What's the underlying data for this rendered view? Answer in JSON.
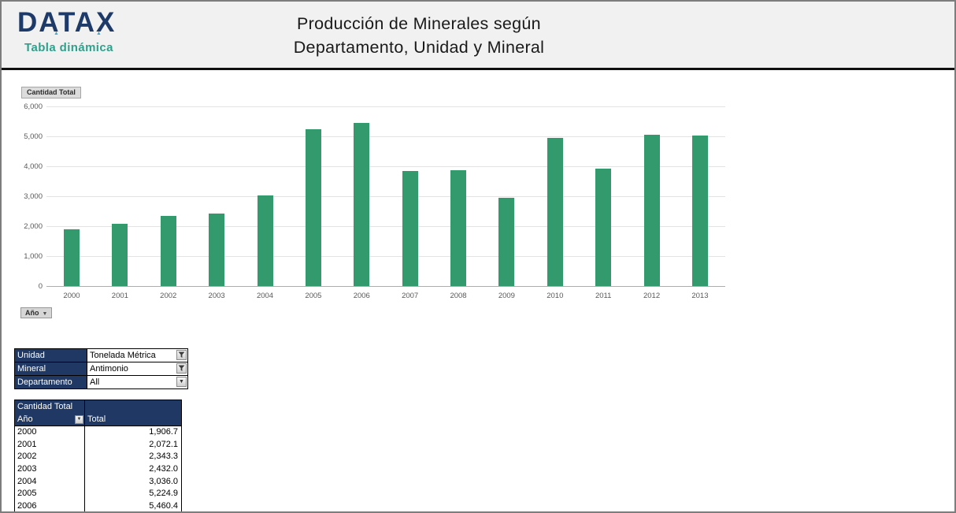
{
  "header": {
    "logo": "DATAX",
    "logo_subtitle": "Tabla dinámica",
    "title_line1": "Producción de Minerales según",
    "title_line2": "Departamento, Unidad y Mineral"
  },
  "chart": {
    "field_button_label": "Cantidad Total",
    "axis_field_button_label": "Año",
    "y_tick_labels": [
      "0",
      "1,000",
      "2,000",
      "3,000",
      "4,000",
      "5,000",
      "6,000"
    ]
  },
  "chart_data": {
    "type": "bar",
    "title": "Cantidad Total",
    "xlabel": "Año",
    "ylabel": "",
    "categories": [
      "2000",
      "2001",
      "2002",
      "2003",
      "2004",
      "2005",
      "2006",
      "2007",
      "2008",
      "2009",
      "2010",
      "2011",
      "2012",
      "2013"
    ],
    "values": [
      1906.7,
      2072.1,
      2343.3,
      2432.0,
      3036.0,
      5224.9,
      5460.4,
      3850,
      3880,
      2960,
      4940,
      3920,
      5060,
      5020
    ],
    "ylim": [
      0,
      6000
    ],
    "ytick_step": 1000,
    "grid": true,
    "legend": "none",
    "bar_color": "#339a6d"
  },
  "filters": {
    "rows": [
      {
        "label": "Unidad",
        "value": "Tonelada Métrica",
        "icon": "filter-funnel-icon"
      },
      {
        "label": "Mineral",
        "value": "Antimonio",
        "icon": "filter-funnel-icon"
      },
      {
        "label": "Departamento",
        "value": "All",
        "icon": "dropdown-arrow-icon"
      }
    ]
  },
  "pivot": {
    "title": "Cantidad Total",
    "row_field": "Año",
    "value_field": "Total",
    "rows": [
      {
        "year": "2000",
        "total": "1,906.7"
      },
      {
        "year": "2001",
        "total": "2,072.1"
      },
      {
        "year": "2002",
        "total": "2,343.3"
      },
      {
        "year": "2003",
        "total": "2,432.0"
      },
      {
        "year": "2004",
        "total": "3,036.0"
      },
      {
        "year": "2005",
        "total": "5,224.9"
      },
      {
        "year": "2006",
        "total": "5,460.4"
      }
    ]
  },
  "colors": {
    "navy": "#1f3864",
    "teal": "#2fa08c",
    "bar_green": "#339a6d",
    "header_bg": "#f1f1f1",
    "gridline": "#e3e3e3"
  }
}
